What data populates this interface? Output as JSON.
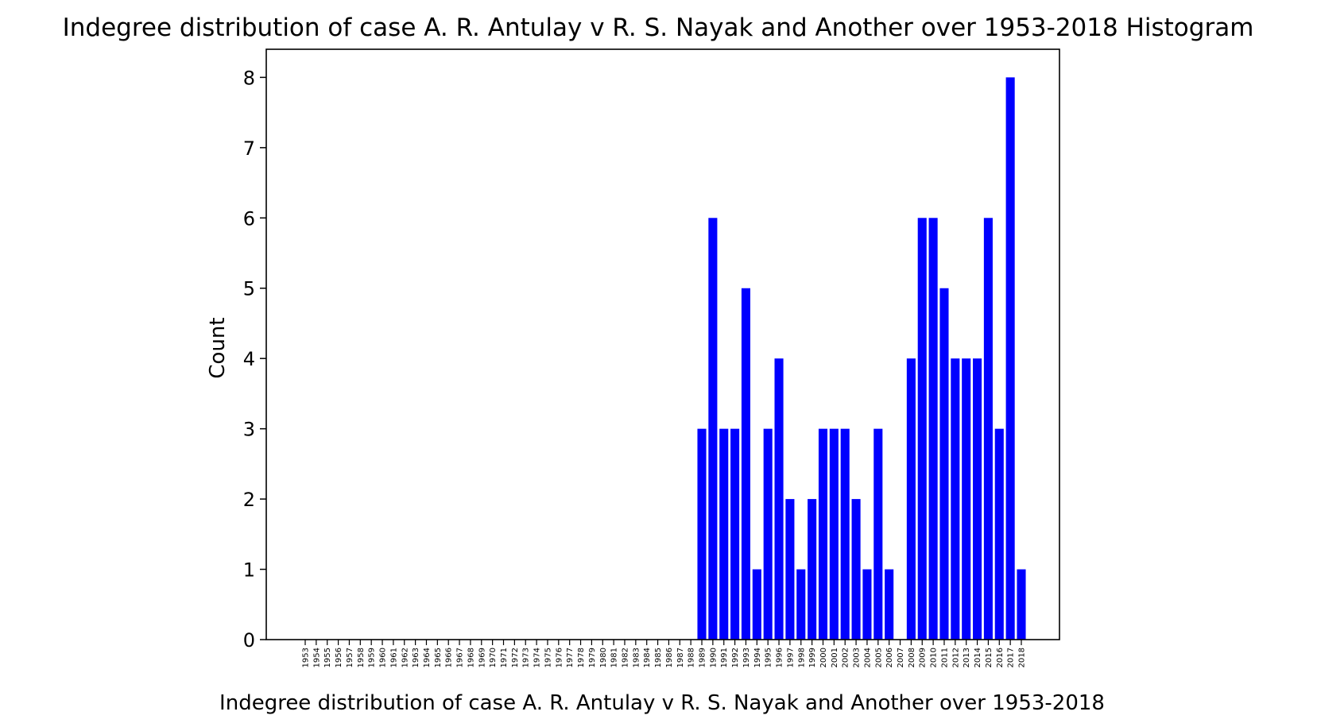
{
  "chart_data": {
    "type": "bar",
    "title": "Indegree distribution of case A. R. Antulay v R. S. Nayak and Another over 1953-2018 Histogram",
    "xlabel": "Indegree distribution of case A. R. Antulay v R. S. Nayak and Another over 1953-2018",
    "ylabel": "Count",
    "ylim": [
      0,
      8.4
    ],
    "yticks": [
      0,
      1,
      2,
      3,
      4,
      5,
      6,
      7,
      8
    ],
    "grid": false,
    "bar_color": "#0000ff",
    "categories": [
      "1953",
      "1954",
      "1955",
      "1956",
      "1957",
      "1958",
      "1959",
      "1960",
      "1961",
      "1962",
      "1963",
      "1964",
      "1965",
      "1966",
      "1967",
      "1968",
      "1969",
      "1970",
      "1971",
      "1972",
      "1973",
      "1974",
      "1975",
      "1976",
      "1977",
      "1978",
      "1979",
      "1980",
      "1981",
      "1982",
      "1983",
      "1984",
      "1985",
      "1986",
      "1987",
      "1988",
      "1989",
      "1990",
      "1991",
      "1992",
      "1993",
      "1994",
      "1995",
      "1996",
      "1997",
      "1998",
      "1999",
      "2000",
      "2001",
      "2002",
      "2003",
      "2004",
      "2005",
      "2006",
      "2007",
      "2008",
      "2009",
      "2010",
      "2011",
      "2012",
      "2013",
      "2014",
      "2015",
      "2016",
      "2017",
      "2018"
    ],
    "values": [
      0,
      0,
      0,
      0,
      0,
      0,
      0,
      0,
      0,
      0,
      0,
      0,
      0,
      0,
      0,
      0,
      0,
      0,
      0,
      0,
      0,
      0,
      0,
      0,
      0,
      0,
      0,
      0,
      0,
      0,
      0,
      0,
      0,
      0,
      0,
      0,
      3,
      6,
      3,
      3,
      5,
      1,
      3,
      4,
      2,
      1,
      2,
      3,
      3,
      3,
      2,
      1,
      3,
      1,
      0,
      4,
      6,
      6,
      5,
      4,
      4,
      4,
      6,
      3,
      8,
      1
    ]
  }
}
